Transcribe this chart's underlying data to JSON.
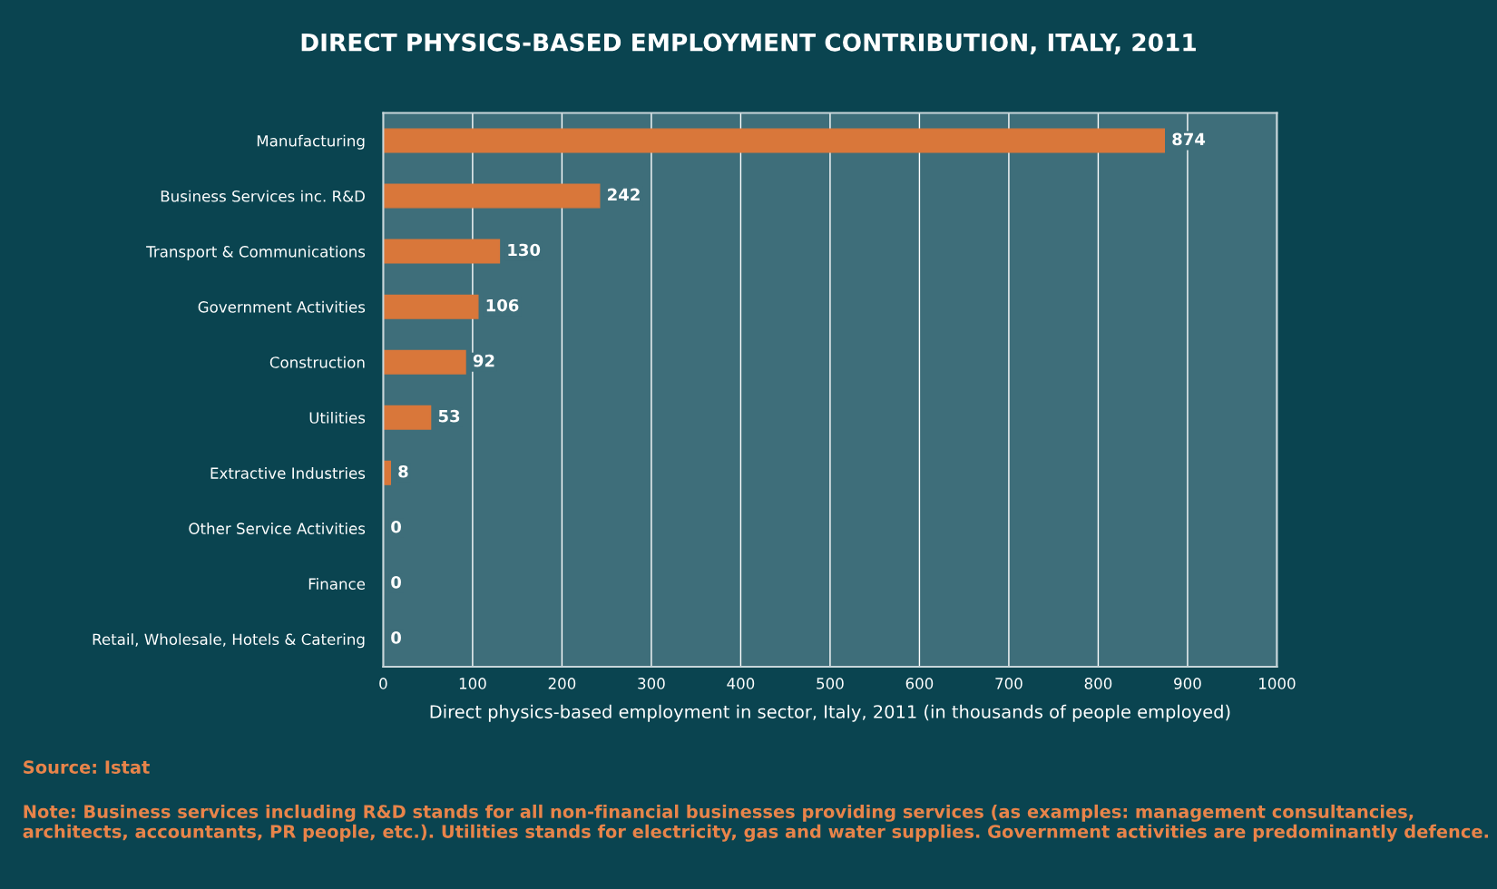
{
  "chart_data": {
    "type": "bar",
    "orientation": "horizontal",
    "title": "DIRECT PHYSICS-BASED EMPLOYMENT CONTRIBUTION, ITALY, 2011",
    "xlabel": "Direct physics-based employment in sector, Italy, 2011 (in thousands of people employed)",
    "categories": [
      "Manufacturing",
      "Business Services inc. R&D",
      "Transport & Communications",
      "Government Activities",
      "Construction",
      "Utilities",
      "Extractive Industries",
      "Other Service Activities",
      "Finance",
      "Retail, Wholesale, Hotels & Catering"
    ],
    "values": [
      874,
      242,
      130,
      106,
      92,
      53,
      8,
      0,
      0,
      0
    ],
    "color": "#d9773a",
    "data_labels": true,
    "grid": "x",
    "xlim": [
      0,
      1000
    ],
    "xticks": [
      0,
      100,
      200,
      300,
      400,
      500,
      600,
      700,
      800,
      900,
      1000
    ],
    "annotations": [
      "Source: Istat",
      "Note: Business services including R&D stands for all non-financial businesses providing services (as examples: management consultancies, architects, accountants, PR people, etc.). Utilities stands for electricity, gas and water supplies. Government activities are predominantly defence."
    ]
  }
}
